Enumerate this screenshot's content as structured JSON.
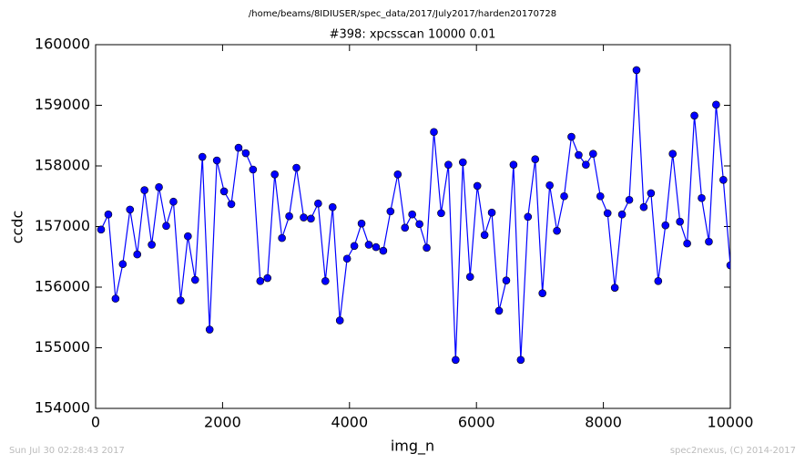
{
  "chart_data": {
    "type": "line",
    "suptitle": "/home/beams/8IDIUSER/spec_data/2017/July2017/harden20170728",
    "title": "#398: xpcsscan 10000 0.01",
    "x_label": "img_n",
    "y_label": "ccdc",
    "footer_left": "Sun Jul 30 02:28:43 2017",
    "footer_right": "spec2nexus, (C) 2014-2017",
    "xlim": [
      0,
      10000
    ],
    "xticks": [
      0,
      2000,
      4000,
      6000,
      8000,
      10000
    ],
    "ylim": [
      154000,
      160000
    ],
    "yticks": [
      154000,
      155000,
      156000,
      157000,
      158000,
      159000,
      160000
    ],
    "x": [
      86,
      200,
      314,
      428,
      542,
      656,
      770,
      884,
      998,
      1112,
      1226,
      1340,
      1454,
      1568,
      1682,
      1796,
      1910,
      2024,
      2138,
      2252,
      2366,
      2480,
      2594,
      2708,
      2822,
      2936,
      3050,
      3164,
      3278,
      3392,
      3506,
      3620,
      3734,
      3848,
      3962,
      4076,
      4190,
      4304,
      4418,
      4532,
      4646,
      4760,
      4874,
      4988,
      5102,
      5216,
      5330,
      5444,
      5558,
      5672,
      5786,
      5900,
      6014,
      6128,
      6242,
      6356,
      6470,
      6584,
      6698,
      6812,
      6926,
      7040,
      7154,
      7268,
      7382,
      7496,
      7610,
      7724,
      7838,
      7952,
      8066,
      8180,
      8294,
      8408,
      8522,
      8636,
      8750,
      8864,
      8978,
      9092,
      9206,
      9320,
      9434,
      9548,
      9662,
      9776,
      9890,
      10000
    ],
    "series": [
      {
        "color": "#0000ff",
        "values": [
          156950,
          157200,
          155810,
          156380,
          157280,
          156540,
          157600,
          156700,
          157650,
          157010,
          157410,
          155780,
          156840,
          156120,
          158150,
          155300,
          158090,
          157580,
          157370,
          158300,
          158210,
          157940,
          156100,
          156150,
          157860,
          156810,
          157170,
          157970,
          157150,
          157130,
          157380,
          156100,
          157320,
          155450,
          156470,
          156680,
          157050,
          156700,
          156660,
          156600,
          157250,
          157860,
          156980,
          157200,
          157040,
          156650,
          158560,
          157220,
          158020,
          154800,
          158060,
          156170,
          157670,
          156860,
          157230,
          155610,
          156110,
          158020,
          154800,
          157160,
          158110,
          155900,
          157680,
          156930,
          157500,
          158480,
          158180,
          158020,
          158200,
          157500,
          157220,
          155990,
          157200,
          157440,
          159580,
          157320,
          157550,
          156100,
          157020,
          158200,
          157080,
          156720,
          158830,
          157470,
          156750,
          159010,
          157770,
          156360
        ]
      }
    ]
  }
}
